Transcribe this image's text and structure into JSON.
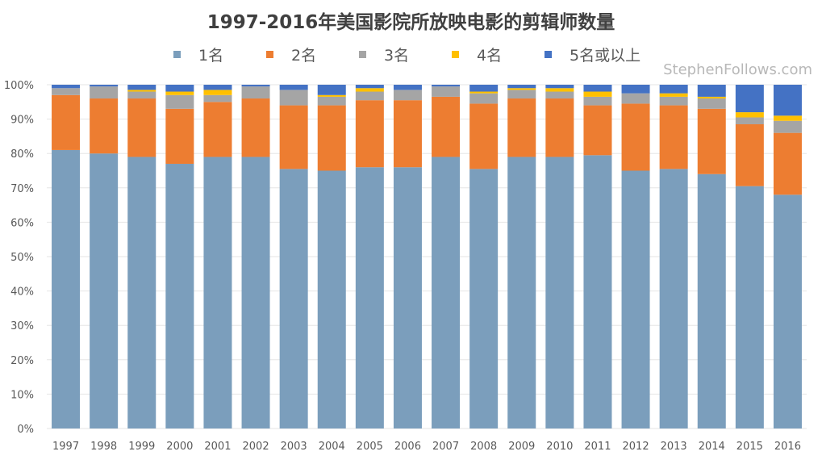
{
  "chart_data": {
    "type": "bar",
    "stacked": "percent",
    "title": "1997-2016年美国影院所放映电影的剪辑师数量",
    "watermark": "StephenFollows.com",
    "categories": [
      "1997",
      "1998",
      "1999",
      "2000",
      "2001",
      "2002",
      "2003",
      "2004",
      "2005",
      "2006",
      "2007",
      "2008",
      "2009",
      "2010",
      "2011",
      "2012",
      "2013",
      "2014",
      "2015",
      "2016"
    ],
    "series": [
      {
        "name": "1名",
        "color": "#7b9ebc",
        "values": [
          81,
          80,
          79,
          77,
          79,
          79,
          75.5,
          75,
          76,
          76,
          79,
          75.5,
          79,
          79,
          79.5,
          75,
          75.5,
          74,
          70.5,
          68
        ]
      },
      {
        "name": "2名",
        "color": "#ed7d31",
        "values": [
          16,
          16,
          17,
          16,
          16,
          17,
          18.5,
          19,
          19.5,
          19.5,
          17.5,
          19,
          17,
          17,
          14.5,
          19.5,
          18.5,
          19,
          18,
          18
        ]
      },
      {
        "name": "3名",
        "color": "#a5a5a5",
        "values": [
          2,
          3.5,
          2,
          4,
          2,
          3.5,
          4.5,
          2.5,
          2.5,
          3,
          3,
          3,
          2.5,
          2,
          2.5,
          3,
          2.5,
          3,
          2,
          3.5
        ]
      },
      {
        "name": "4名",
        "color": "#ffc000",
        "values": [
          0,
          0,
          0.5,
          1,
          1.5,
          0,
          0,
          0.5,
          1,
          0,
          0,
          0.5,
          0.5,
          1,
          1.5,
          0,
          1,
          0.5,
          1.5,
          1.5
        ]
      },
      {
        "name": "5名或以上",
        "color": "#4472c4",
        "values": [
          1,
          0.5,
          1.5,
          2,
          1.5,
          0.5,
          1.5,
          3,
          1,
          1.5,
          0.5,
          2,
          1,
          1,
          2,
          2.5,
          2.5,
          3.5,
          8,
          9
        ]
      }
    ],
    "yticks": [
      "0%",
      "10%",
      "20%",
      "30%",
      "40%",
      "50%",
      "60%",
      "70%",
      "80%",
      "90%",
      "100%"
    ],
    "ylim": [
      0,
      100
    ],
    "grid": true,
    "legend": "top"
  }
}
